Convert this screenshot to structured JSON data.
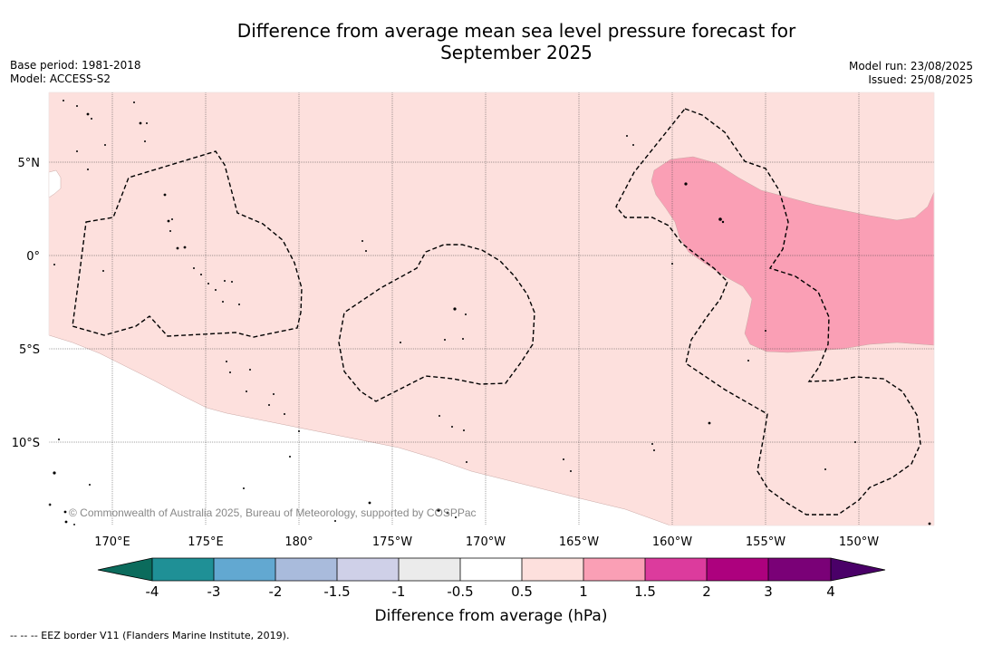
{
  "title_line1": "Difference from average mean sea level pressure forecast for",
  "title_line2": "September 2025",
  "meta_left": {
    "base_period": "Base period: 1981-2018",
    "model": "Model: ACCESS-S2"
  },
  "meta_right": {
    "model_run": "Model run: 23/08/2025",
    "issued": "Issued: 25/08/2025"
  },
  "map": {
    "lat_labels": [
      "5°N",
      "0°",
      "5°S",
      "10°S"
    ],
    "lon_labels": [
      "170°E",
      "175°E",
      "180°",
      "175°W",
      "170°W",
      "165°W",
      "160°W",
      "155°W",
      "150°W"
    ],
    "copyright": "© Commonwealth of Australia 2025, Bureau of Meteorology, supported by COSPPac",
    "colors": {
      "range_0_5_to_1": "#fde0dd",
      "range_1_to_1_5": "#fa9fb5"
    }
  },
  "colorbar": {
    "title": "Difference from average (hPa)",
    "tick_labels": [
      "-4",
      "-3",
      "-2",
      "-1.5",
      "-1",
      "-0.5",
      "0.5",
      "1",
      "1.5",
      "2",
      "3",
      "4"
    ],
    "colors": [
      "#0b6b5c",
      "#1f9096",
      "#62a8d1",
      "#a9bbdc",
      "#cfd0e8",
      "#ebebeb",
      "#ffffff",
      "#fde0dd",
      "#fa9fb5",
      "#dc3b9d",
      "#ad017e",
      "#7a0177",
      "#4a0068"
    ]
  },
  "footer_legend": "--  --  -- EEZ border V11 (Flanders Marine Institute, 2019)."
}
